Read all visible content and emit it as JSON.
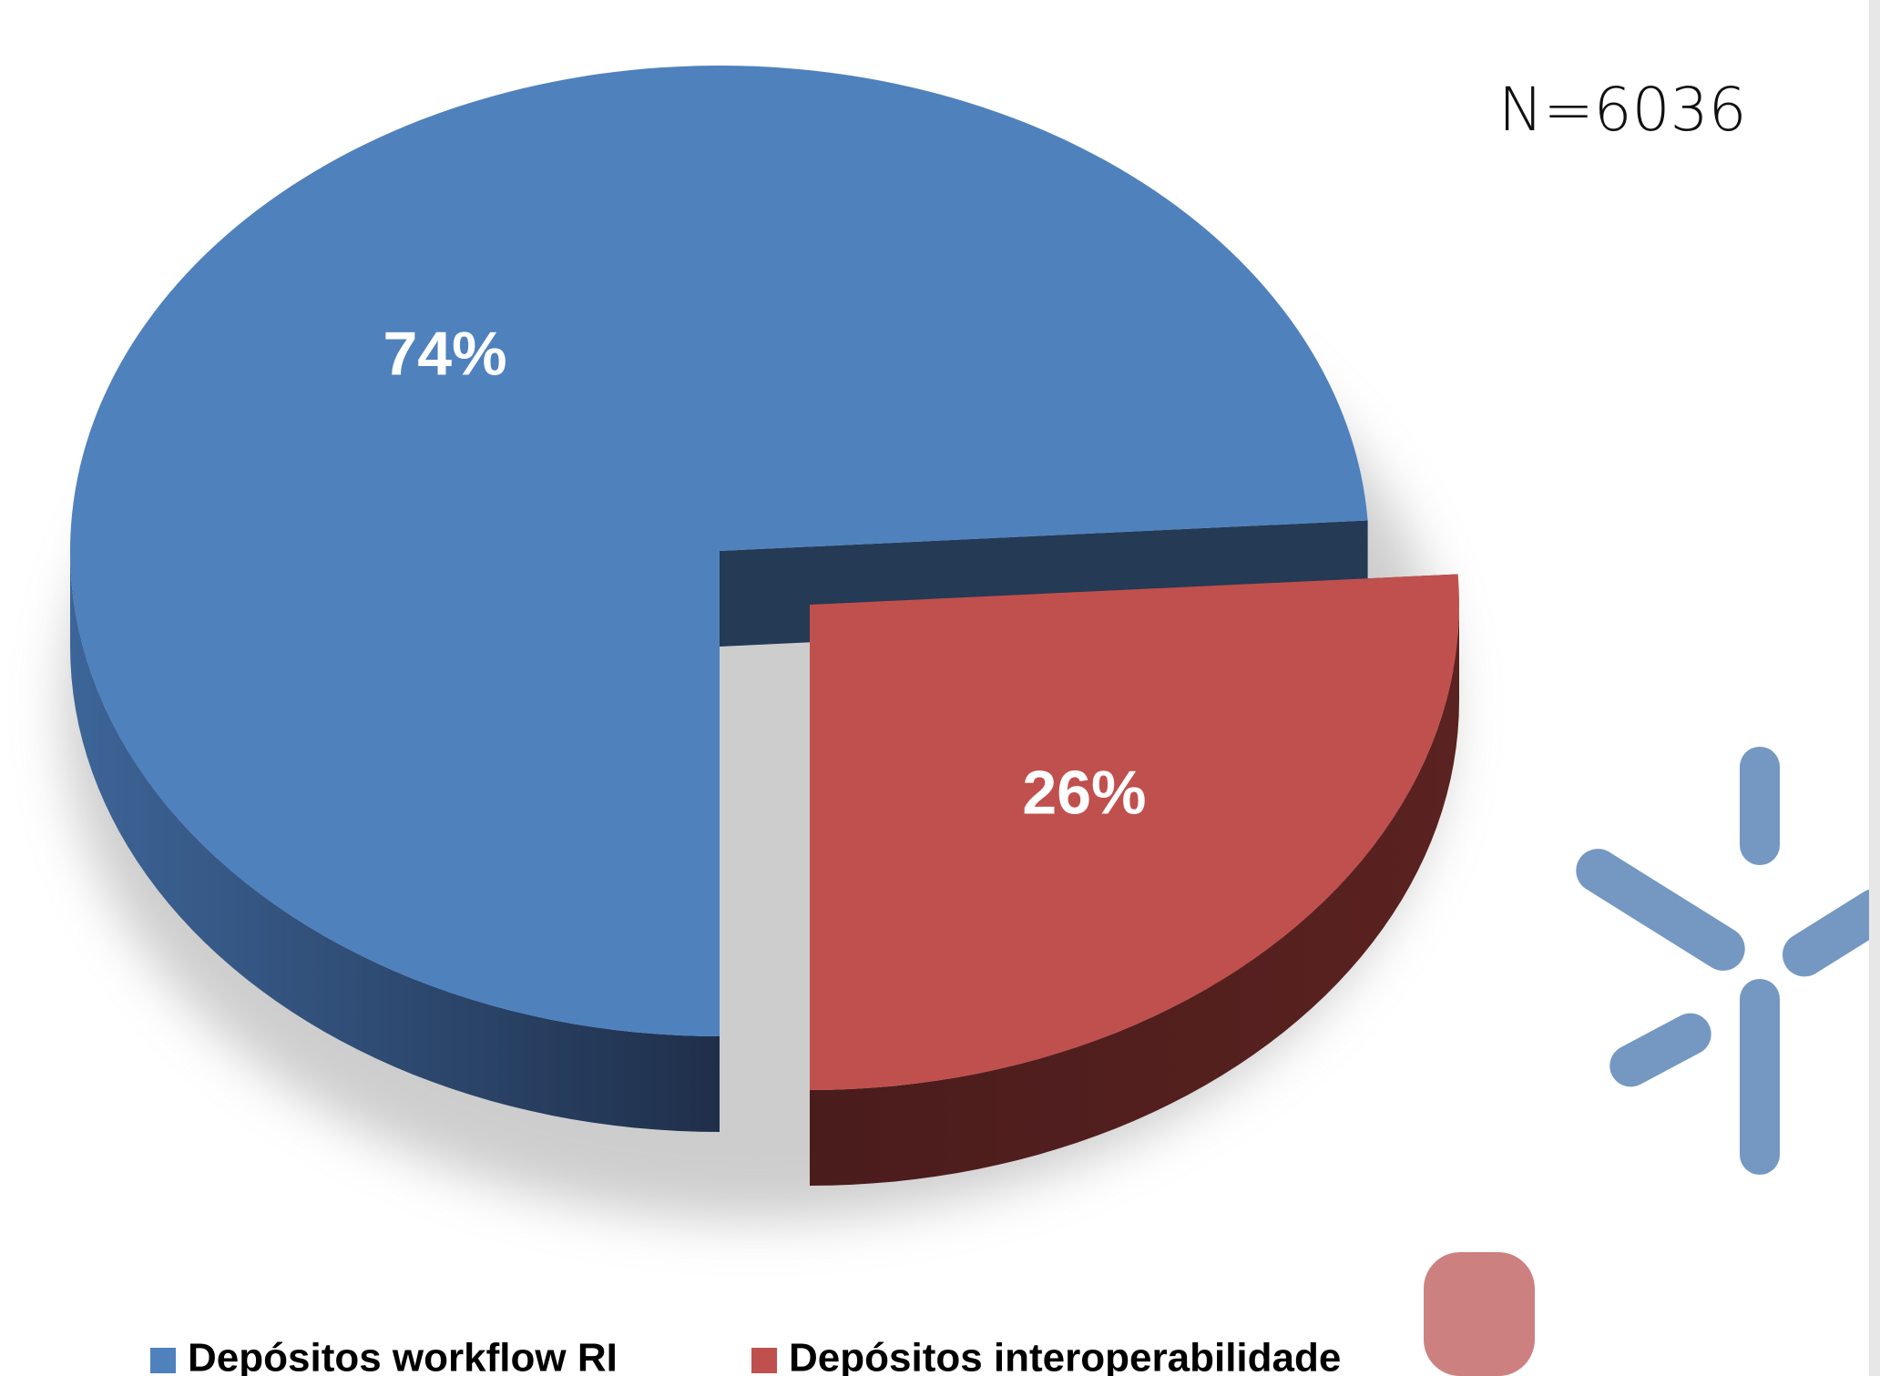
{
  "chart_data": {
    "type": "pie",
    "annotation": "N=6036",
    "series": [
      {
        "name": "Depósitos workflow RI",
        "color": "#4f81bd",
        "values": [
          74
        ],
        "value_labels": [
          "74%"
        ]
      },
      {
        "name": "Depósitos interoperabilidade",
        "color": "#c0504d",
        "values": [
          26
        ],
        "value_labels": [
          "26%"
        ]
      }
    ],
    "legend": "bottom"
  }
}
